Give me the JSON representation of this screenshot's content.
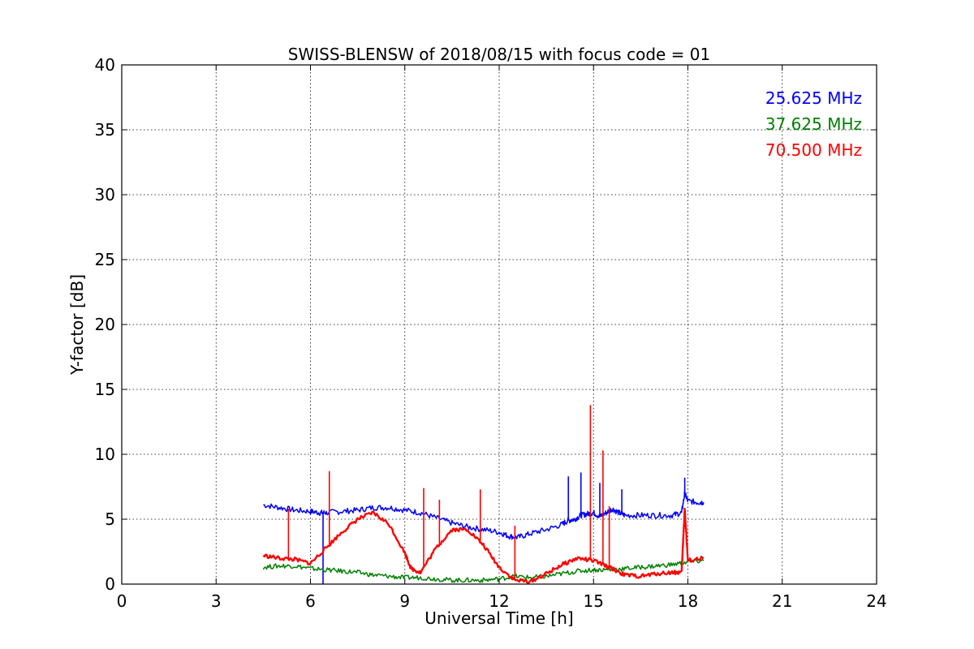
{
  "chart_data": {
    "type": "line",
    "title": "SWISS-BLENSW of 2018/08/15 with focus code = 01",
    "xlabel": "Universal Time [h]",
    "ylabel": "Y-factor [dB]",
    "xlim": [
      0,
      24
    ],
    "ylim": [
      0,
      40
    ],
    "xticks": [
      0,
      3,
      6,
      9,
      12,
      15,
      18,
      21,
      24
    ],
    "yticks": [
      0,
      5,
      10,
      15,
      20,
      25,
      30,
      35,
      40
    ],
    "grid": true,
    "legend_position": "top-right",
    "series": [
      {
        "name": "25.625 MHz",
        "color": "#0000ff",
        "x": [
          4.5,
          5.0,
          5.5,
          6.0,
          6.3,
          6.5,
          7.0,
          7.5,
          8.0,
          8.5,
          9.0,
          9.5,
          10.0,
          10.5,
          11.0,
          11.5,
          12.0,
          12.3,
          12.6,
          13.0,
          13.5,
          14.0,
          14.2,
          14.4,
          14.6,
          14.8,
          15.0,
          15.2,
          15.4,
          15.6,
          15.8,
          16.0,
          16.5,
          17.0,
          17.5,
          17.8,
          17.9,
          18.0,
          18.3,
          18.5
        ],
        "y": [
          6.1,
          5.9,
          5.7,
          5.6,
          5.5,
          5.5,
          5.6,
          5.7,
          5.9,
          5.9,
          5.7,
          5.5,
          5.1,
          4.7,
          4.4,
          4.2,
          4.0,
          3.7,
          3.6,
          3.9,
          4.2,
          4.6,
          4.9,
          5.0,
          5.3,
          5.4,
          5.5,
          5.2,
          5.5,
          5.8,
          5.5,
          5.3,
          5.3,
          5.3,
          5.3,
          5.5,
          7.0,
          6.4,
          6.3,
          6.3
        ],
        "spikes": [
          [
            6.4,
            0.0
          ],
          [
            14.2,
            8.3
          ],
          [
            14.6,
            8.6
          ],
          [
            15.2,
            7.8
          ],
          [
            15.9,
            7.3
          ],
          [
            17.9,
            8.2
          ]
        ]
      },
      {
        "name": "37.625 MHz",
        "color": "#008000",
        "x": [
          4.5,
          5.0,
          5.5,
          6.0,
          6.5,
          7.0,
          7.5,
          8.0,
          8.5,
          9.0,
          9.5,
          10.0,
          10.5,
          11.0,
          11.5,
          12.0,
          12.5,
          13.0,
          13.5,
          14.0,
          14.5,
          15.0,
          15.5,
          16.0,
          16.5,
          17.0,
          17.5,
          18.0,
          18.5
        ],
        "y": [
          1.3,
          1.4,
          1.4,
          1.2,
          1.1,
          1.0,
          0.9,
          0.7,
          0.6,
          0.5,
          0.5,
          0.4,
          0.3,
          0.3,
          0.3,
          0.4,
          0.6,
          0.5,
          0.6,
          0.8,
          1.0,
          1.1,
          1.1,
          1.2,
          1.3,
          1.4,
          1.5,
          1.7,
          1.8
        ],
        "spikes": []
      },
      {
        "name": "70.500 MHz",
        "color": "#ff0000",
        "x": [
          4.5,
          5.0,
          5.5,
          6.0,
          6.5,
          7.0,
          7.5,
          8.0,
          8.5,
          9.0,
          9.2,
          9.5,
          10.0,
          10.5,
          11.0,
          11.5,
          12.0,
          12.5,
          13.0,
          13.5,
          14.0,
          14.5,
          15.0,
          15.5,
          16.0,
          16.5,
          17.0,
          17.5,
          17.8,
          17.9,
          18.0,
          18.5
        ],
        "y": [
          2.2,
          2.0,
          1.9,
          1.6,
          2.8,
          4.0,
          5.0,
          5.5,
          4.6,
          2.4,
          1.2,
          0.9,
          2.8,
          4.2,
          4.2,
          3.0,
          1.3,
          0.3,
          0.2,
          0.8,
          1.5,
          2.0,
          1.8,
          1.3,
          0.7,
          0.6,
          0.8,
          0.9,
          0.9,
          5.8,
          1.8,
          2.0
        ],
        "spikes": [
          [
            5.3,
            5.8
          ],
          [
            6.6,
            8.7
          ],
          [
            9.6,
            7.4
          ],
          [
            10.1,
            6.5
          ],
          [
            11.4,
            7.3
          ],
          [
            12.5,
            4.5
          ],
          [
            14.9,
            13.8
          ],
          [
            15.3,
            10.3
          ],
          [
            15.5,
            6.0
          ]
        ]
      }
    ]
  }
}
